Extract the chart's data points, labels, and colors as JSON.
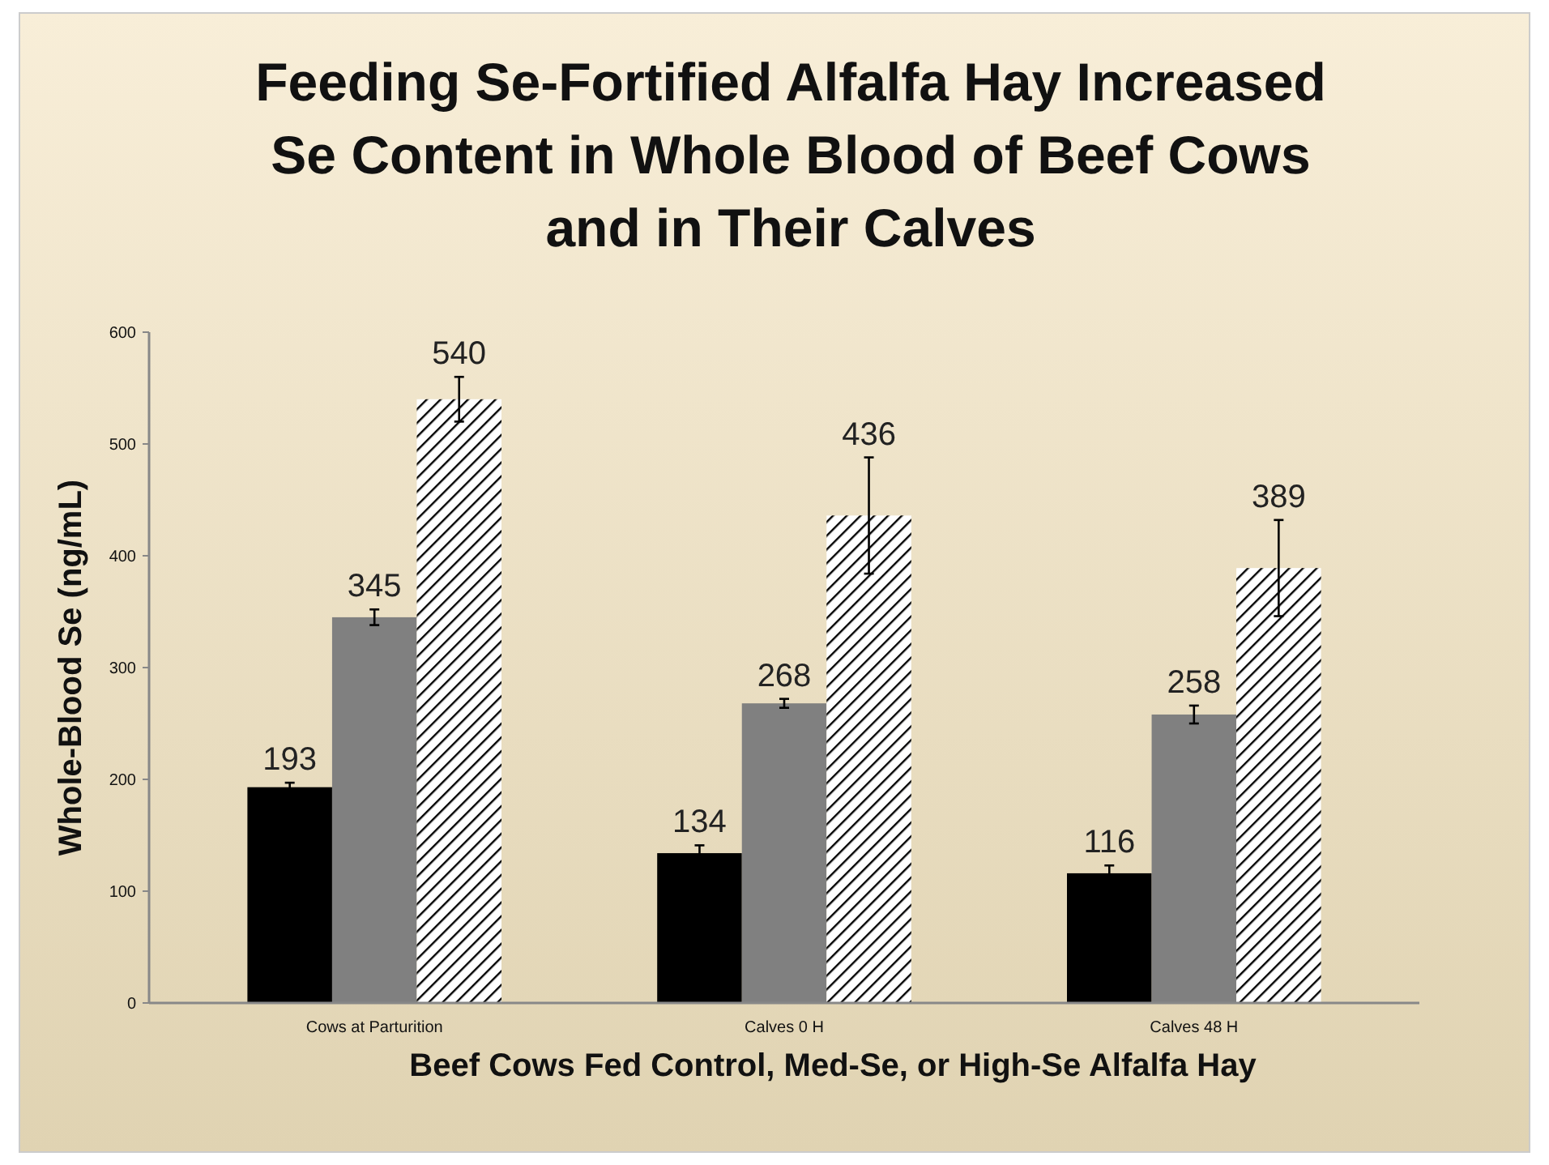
{
  "chart_data": {
    "type": "bar",
    "title": "Feeding Se-Fortified Alfalfa Hay Increased\nSe Content in Whole Blood of Beef Cows\nand in Their Calves",
    "xlabel": "Beef Cows Fed Control,  Med-Se, or High-Se  Alfalfa Hay",
    "ylabel": "Whole-Blood Se (ng/mL)",
    "categories": [
      "Cows at Parturition",
      "Calves 0 H",
      "Calves 48 H"
    ],
    "series": [
      {
        "color": "#000000",
        "values": [
          193,
          134,
          116
        ],
        "errors": [
          4,
          7,
          7
        ]
      },
      {
        "color": "#808080",
        "values": [
          345,
          268,
          258
        ],
        "errors": [
          7,
          4,
          8
        ]
      },
      {
        "color": "#ffffff",
        "values": [
          540,
          436,
          389
        ],
        "errors": [
          20,
          52,
          43
        ]
      }
    ],
    "ylim": [
      0,
      600
    ],
    "yticks": [
      0,
      100,
      200,
      300,
      400,
      500,
      600
    ],
    "data_labels": true,
    "grid": false
  }
}
